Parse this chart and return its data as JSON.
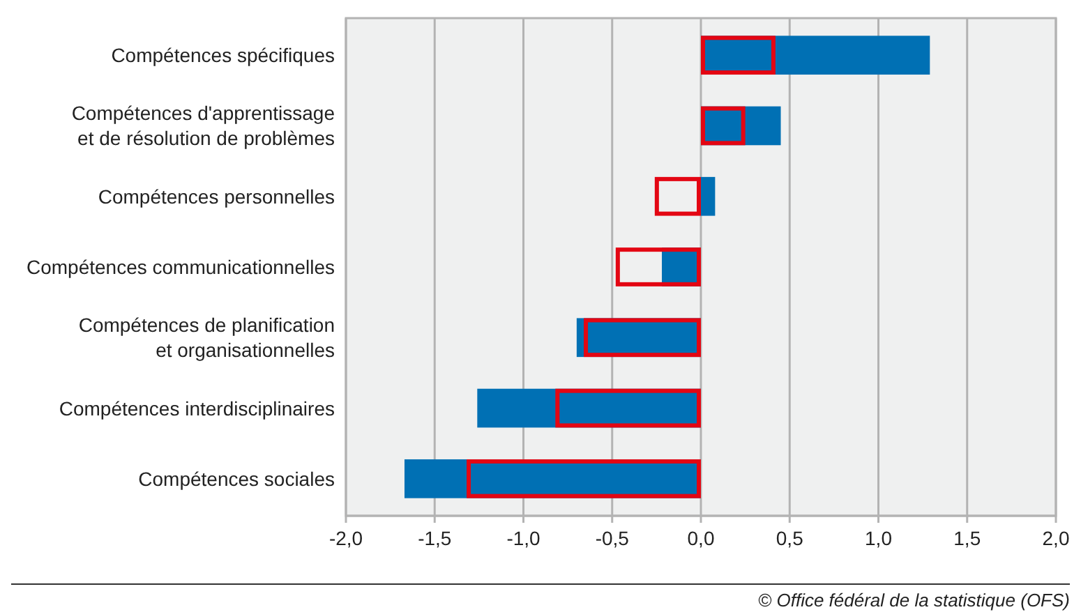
{
  "chart_data": {
    "type": "bar",
    "orientation": "horizontal",
    "categories": [
      "Compétences spécifiques",
      "Compétences d'apprentissage\net de résolution de problèmes",
      "Compétences personnelles",
      "Compétences communicationnelles",
      "Compétences de planification\net organisationnelles",
      "Compétences interdisciplinaires",
      "Compétences sociales"
    ],
    "series": [
      {
        "type": "bar",
        "color": "#0070b4",
        "values": [
          1.29,
          0.45,
          0.08,
          -0.22,
          -0.7,
          -1.26,
          -1.67
        ]
      },
      {
        "type": "bar",
        "color": "#e30613",
        "values": [
          0.42,
          0.25,
          -0.26,
          -0.48,
          -0.66,
          -0.82,
          -1.32
        ]
      }
    ],
    "xlim": [
      -2,
      2
    ],
    "xticks": [
      {
        "value": -2,
        "label": "-2,0"
      },
      {
        "value": -1.5,
        "label": "-1,5"
      },
      {
        "value": -1,
        "label": "-1,0"
      },
      {
        "value": -0.5,
        "label": "-0,5"
      },
      {
        "value": 0,
        "label": "0,0"
      },
      {
        "value": 0.5,
        "label": "0,5"
      },
      {
        "value": 1,
        "label": "1,0"
      },
      {
        "value": 1.5,
        "label": "1,5"
      },
      {
        "value": 2,
        "label": "2,0"
      }
    ],
    "grid": "x",
    "annotations": [
      "© Office fédéral de la statistique (OFS)"
    ]
  }
}
